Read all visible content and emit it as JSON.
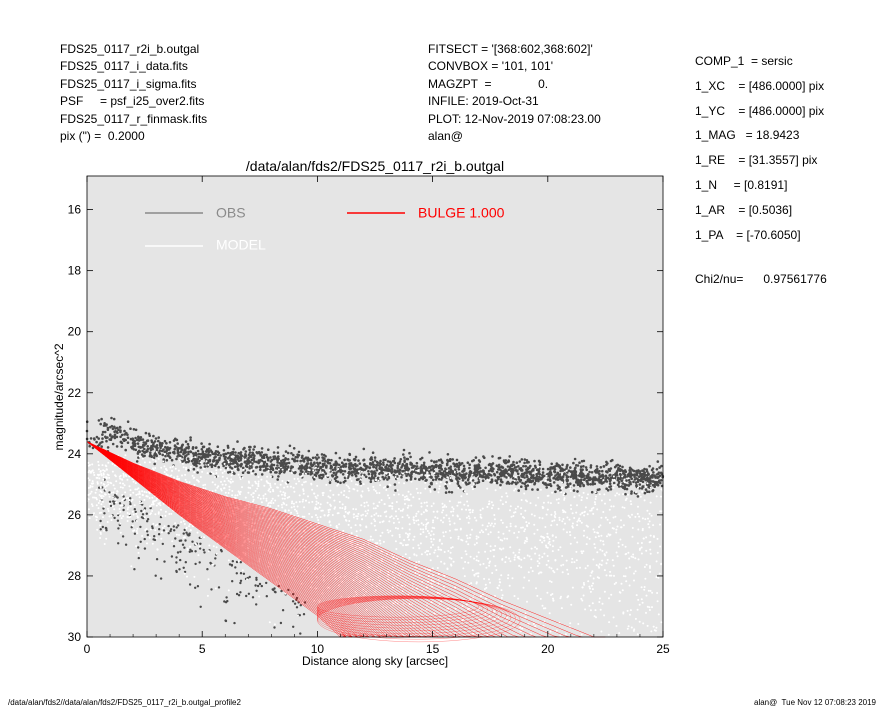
{
  "header_left": [
    "FDS25_0117_r2i_b.outgal",
    "FDS25_0117_i_data.fits",
    "FDS25_0117_i_sigma.fits",
    "PSF     = psf_i25_over2.fits",
    "FDS25_0117_r_finmask.fits",
    "pix (\") =  0.2000"
  ],
  "header_mid": [
    "FITSECT = '[368:602,368:602]'",
    "CONVBOX = '101, 101'",
    "MAGZPT  =              0.",
    "INFILE: 2019-Oct-31",
    "PLOT: 12-Nov-2019 07:08:23.00",
    "alan@"
  ],
  "header_right": [
    "COMP_1  = sersic",
    "1_XC    = [486.0000] pix",
    "1_YC    = [486.0000] pix",
    "1_MAG   = 18.9423",
    "1_RE    = [31.3557] pix",
    "1_N     = [0.8191]",
    "1_AR    = [0.5036]",
    "1_PA    = [-70.6050]"
  ],
  "chi2": "Chi2/nu=      0.97561776",
  "footer_left": "/data/alan/fds2//data/alan/fds2/FDS25_0117_r2i_b.outgal_profile2",
  "footer_right": "alan@  Tue Nov 12 07:08:23 2019",
  "colors": {
    "plot_bg": "#e5e5e5",
    "obs": "#4a4a4a",
    "model": "#ffffff",
    "bulge": "#ff0000"
  },
  "chart_data": {
    "type": "scatter",
    "title": "/data/alan/fds2/FDS25_0117_r2i_b.outgal",
    "xlabel": "Distance along sky [arcsec]",
    "ylabel": "magnitude/arcsec^2",
    "xlim": [
      0,
      25
    ],
    "ylim": [
      30,
      14.9
    ],
    "y_inverted": true,
    "xticks": [
      0,
      5,
      10,
      15,
      20,
      25
    ],
    "yticks": [
      16,
      18,
      20,
      22,
      24,
      26,
      28,
      30
    ],
    "legend": [
      {
        "label": "OBS",
        "color": "#8a8a8a"
      },
      {
        "label": "MODEL",
        "color": "#ffffff"
      },
      {
        "label": "BULGE  1.000",
        "color": "#ff0000"
      }
    ],
    "series": [
      {
        "name": "OBS",
        "description_points": "noisy profile, flat near 24.5 mag beyond ~1 arcsec",
        "x": [
          0.2,
          0.5,
          1.0,
          2,
          4,
          6,
          8,
          10,
          12,
          14,
          16,
          18,
          20,
          22,
          24,
          25
        ],
        "y": [
          23.5,
          23.4,
          23.3,
          23.7,
          24.0,
          24.2,
          24.3,
          24.4,
          24.5,
          24.5,
          24.6,
          24.6,
          24.7,
          24.7,
          24.8,
          24.8
        ]
      },
      {
        "name": "BULGE  1.000",
        "upper_edge": {
          "x": [
            0,
            2,
            4,
            6,
            8,
            10,
            12,
            14,
            16,
            18,
            20,
            22
          ],
          "y": [
            23.6,
            24.3,
            24.9,
            25.4,
            25.8,
            26.3,
            26.8,
            27.5,
            28.1,
            28.8,
            29.4,
            30.0
          ]
        },
        "lower_edge": {
          "x": [
            0,
            2,
            4,
            6,
            8,
            10,
            11
          ],
          "y": [
            23.6,
            24.8,
            26.0,
            27.1,
            28.2,
            29.3,
            30.0
          ]
        }
      }
    ]
  }
}
